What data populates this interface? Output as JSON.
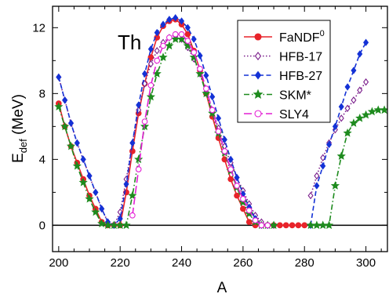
{
  "chart_data": {
    "type": "line",
    "annotation": "Th",
    "xlabel": "A",
    "ylabel_main": "E",
    "ylabel_sub": "def",
    "ylabel_unit": " (MeV)",
    "xlim": [
      198,
      307
    ],
    "ylim": [
      -1.6,
      13.3
    ],
    "xticks": [
      200,
      220,
      240,
      260,
      280,
      300
    ],
    "yticks": [
      0,
      4,
      8,
      12
    ],
    "x_minor_step": 5,
    "y_minor_step": 2,
    "zero_line": true,
    "legend_position": "top-right",
    "series": [
      {
        "name": "FaNDF",
        "name_sup": "0",
        "color": "#e8232a",
        "dash": "solid",
        "marker": "circle",
        "filled": true,
        "x": [
          200,
          202,
          204,
          206,
          208,
          210,
          212,
          214,
          216,
          218,
          220,
          222,
          224,
          226,
          228,
          230,
          232,
          234,
          236,
          238,
          240,
          242,
          244,
          246,
          248,
          250,
          252,
          254,
          256,
          258,
          260,
          262,
          264,
          266,
          268,
          270,
          272,
          274,
          276,
          278,
          280
        ],
        "y": [
          7.4,
          6.0,
          4.8,
          3.8,
          2.8,
          1.8,
          1.0,
          0.2,
          0,
          0,
          0,
          2.0,
          4.5,
          6.8,
          8.6,
          10.2,
          11.4,
          12.1,
          12.4,
          12.5,
          12.2,
          11.6,
          10.6,
          9.4,
          8.0,
          6.6,
          5.3,
          4.0,
          2.8,
          1.8,
          1.0,
          0.2,
          0,
          0,
          0,
          0,
          0,
          0,
          0,
          0,
          0
        ]
      },
      {
        "name": "HFB-17",
        "name_sup": "",
        "color": "#7b1f8c",
        "dash": "dot",
        "marker": "diamond",
        "filled": false,
        "x": [
          200,
          202,
          204,
          206,
          208,
          210,
          212,
          214,
          216,
          218,
          220,
          222,
          224,
          226,
          228,
          230,
          232,
          234,
          236,
          238,
          240,
          242,
          244,
          246,
          248,
          250,
          252,
          254,
          256,
          258,
          260,
          262,
          264,
          266,
          268,
          270,
          282,
          284,
          286,
          288,
          290,
          292,
          294,
          296,
          298,
          300
        ],
        "y": [
          9.0,
          7.6,
          6.2,
          5.0,
          4.0,
          3.0,
          2.0,
          1.0,
          0.2,
          0,
          0.8,
          2.8,
          5.0,
          7.0,
          8.6,
          9.8,
          10.6,
          11.1,
          11.4,
          11.5,
          11.3,
          10.8,
          10.1,
          9.2,
          8.1,
          7.0,
          5.9,
          4.8,
          3.8,
          2.9,
          2.1,
          1.3,
          0.6,
          0.2,
          0,
          0,
          1.8,
          3.0,
          4.1,
          5.0,
          5.8,
          6.5,
          7.1,
          7.6,
          8.2,
          8.7
        ]
      },
      {
        "name": "HFB-27",
        "name_sup": "",
        "color": "#1432d6",
        "dash": "dash",
        "marker": "diamond",
        "filled": true,
        "x": [
          200,
          202,
          204,
          206,
          208,
          210,
          212,
          214,
          216,
          218,
          220,
          222,
          224,
          226,
          228,
          230,
          232,
          234,
          236,
          238,
          240,
          242,
          244,
          246,
          248,
          250,
          252,
          254,
          256,
          258,
          260,
          262,
          264,
          266,
          268,
          282,
          284,
          286,
          288,
          290,
          292,
          294,
          296,
          298,
          300
        ],
        "y": [
          9.0,
          7.6,
          6.2,
          5.0,
          4.0,
          3.0,
          2.0,
          1.0,
          0.2,
          0,
          0.4,
          2.5,
          5.0,
          7.3,
          9.2,
          10.7,
          11.7,
          12.2,
          12.5,
          12.6,
          12.4,
          12.0,
          11.3,
          10.3,
          9.1,
          7.8,
          6.5,
          5.2,
          4.0,
          2.9,
          1.9,
          1.1,
          0.4,
          0,
          0,
          0,
          2.4,
          3.6,
          4.9,
          6.0,
          7.2,
          8.4,
          9.4,
          10.4,
          11.1
        ]
      },
      {
        "name": "SKM*",
        "name_sup": "",
        "color": "#1e8b1e",
        "dash": "dashdot",
        "marker": "star",
        "filled": true,
        "x": [
          200,
          202,
          204,
          206,
          208,
          210,
          212,
          214,
          216,
          218,
          220,
          222,
          224,
          226,
          228,
          230,
          232,
          234,
          236,
          238,
          240,
          242,
          244,
          246,
          248,
          250,
          252,
          254,
          256,
          258,
          260,
          262,
          264,
          266,
          268,
          270,
          282,
          284,
          286,
          288,
          290,
          292,
          294,
          296,
          298,
          300,
          302,
          304,
          306
        ],
        "y": [
          7.2,
          6.0,
          4.8,
          3.6,
          2.6,
          1.6,
          0.8,
          0.1,
          0,
          0,
          0,
          0,
          1.8,
          4.0,
          6.0,
          7.8,
          9.2,
          10.2,
          10.9,
          11.3,
          11.3,
          10.9,
          10.2,
          9.2,
          8.0,
          6.8,
          5.6,
          4.4,
          3.3,
          2.3,
          1.4,
          0.7,
          0.2,
          0,
          0,
          0,
          0,
          0,
          0,
          0,
          2.4,
          4.2,
          5.6,
          6.2,
          6.5,
          6.7,
          6.9,
          7.0,
          7.0
        ]
      },
      {
        "name": "SLY4",
        "name_sup": "",
        "color": "#e31fd4",
        "dash": "longdash",
        "marker": "circle",
        "filled": false,
        "x": [
          224,
          226,
          228,
          230,
          232,
          234,
          236,
          238,
          240,
          242,
          244,
          246,
          248,
          250,
          252,
          254,
          256,
          258,
          260,
          262,
          264,
          266,
          268
        ],
        "y": [
          0.6,
          3.4,
          6.3,
          8.5,
          10.0,
          10.9,
          11.4,
          11.6,
          11.6,
          11.2,
          10.5,
          9.5,
          8.3,
          7.0,
          5.7,
          4.5,
          3.4,
          2.4,
          1.6,
          0.9,
          0.3,
          0,
          0
        ]
      }
    ]
  }
}
